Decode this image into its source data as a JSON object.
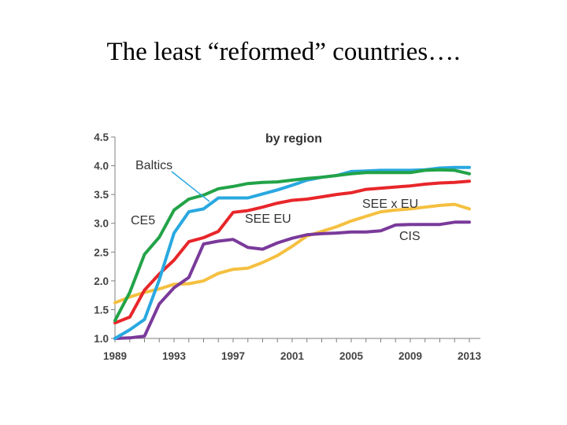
{
  "slide": {
    "title": "The least “reformed” countries…."
  },
  "chart_data": {
    "type": "line",
    "title": "by region",
    "xlabel": "",
    "ylabel": "",
    "xlim": [
      1989,
      2013
    ],
    "ylim": [
      1.0,
      4.5
    ],
    "x_ticks": [
      "1989",
      "1993",
      "1997",
      "2001",
      "2005",
      "2009",
      "2013"
    ],
    "y_ticks": [
      "1.0",
      "1.5",
      "2.0",
      "2.5",
      "3.0",
      "3.5",
      "4.0",
      "4.5"
    ],
    "x": [
      1989,
      1990,
      1991,
      1992,
      1993,
      1994,
      1995,
      1996,
      1997,
      1998,
      1999,
      2000,
      2001,
      2002,
      2003,
      2004,
      2005,
      2006,
      2007,
      2008,
      2009,
      2010,
      2011,
      2012,
      2013
    ],
    "series": [
      {
        "name": "SEE x EU",
        "label": "SEE x EU",
        "color": "#f5c040",
        "values": [
          1.62,
          1.72,
          1.8,
          1.86,
          1.94,
          1.95,
          2.0,
          2.13,
          2.2,
          2.22,
          2.32,
          2.44,
          2.6,
          2.78,
          2.86,
          2.94,
          3.04,
          3.12,
          3.2,
          3.23,
          3.25,
          3.28,
          3.31,
          3.33,
          3.25
        ]
      },
      {
        "name": "CIS",
        "label": "CIS",
        "color": "#7a3a9a",
        "values": [
          1.0,
          1.01,
          1.04,
          1.6,
          1.88,
          2.06,
          2.64,
          2.69,
          2.72,
          2.58,
          2.55,
          2.66,
          2.74,
          2.8,
          2.82,
          2.83,
          2.85,
          2.85,
          2.87,
          2.97,
          2.98,
          2.98,
          2.98,
          3.02,
          3.02
        ]
      },
      {
        "name": "SEE EU",
        "label": "SEE EU",
        "color": "#e8262a",
        "values": [
          1.27,
          1.37,
          1.84,
          2.12,
          2.36,
          2.68,
          2.75,
          2.86,
          3.19,
          3.22,
          3.28,
          3.35,
          3.4,
          3.42,
          3.46,
          3.5,
          3.53,
          3.59,
          3.61,
          3.63,
          3.65,
          3.68,
          3.7,
          3.71,
          3.73
        ]
      },
      {
        "name": "Baltics",
        "label": "Baltics",
        "color": "#29a8e0",
        "values": [
          1.0,
          1.15,
          1.33,
          2.02,
          2.83,
          3.2,
          3.25,
          3.44,
          3.44,
          3.44,
          3.51,
          3.58,
          3.66,
          3.75,
          3.8,
          3.83,
          3.9,
          3.91,
          3.92,
          3.92,
          3.92,
          3.93,
          3.96,
          3.97,
          3.97
        ]
      },
      {
        "name": "CE5",
        "label": "CE5",
        "color": "#22a348",
        "values": [
          1.31,
          1.8,
          2.46,
          2.76,
          3.23,
          3.42,
          3.49,
          3.6,
          3.64,
          3.69,
          3.71,
          3.72,
          3.75,
          3.78,
          3.8,
          3.83,
          3.86,
          3.88,
          3.88,
          3.88,
          3.88,
          3.92,
          3.93,
          3.92,
          3.86
        ]
      }
    ],
    "annotations": [
      {
        "text": "Baltics",
        "pointer_to_series": "Baltics",
        "pointer_at_x": 1995
      },
      {
        "text": "CE5"
      },
      {
        "text": "SEE EU"
      },
      {
        "text": "SEE x EU"
      },
      {
        "text": "CIS"
      }
    ],
    "grid": false,
    "legend": "none"
  }
}
